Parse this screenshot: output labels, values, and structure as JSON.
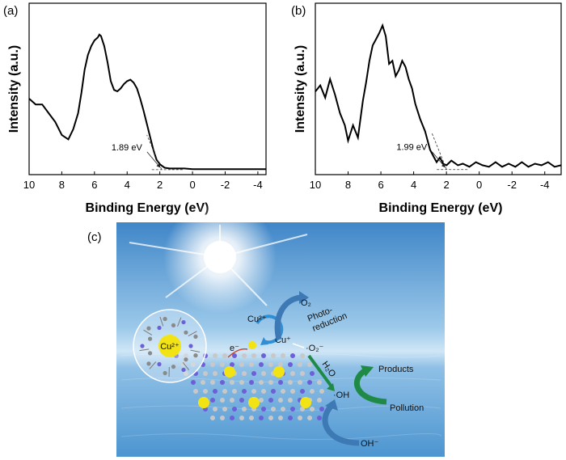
{
  "chart_data": [
    {
      "panel": "(a)",
      "type": "line",
      "xlabel": "Binding Energy (eV)",
      "ylabel": "Intensity (a.u.)",
      "xlim": [
        10,
        -4.5
      ],
      "x_reversed": true,
      "xticks": [
        10,
        8,
        6,
        4,
        2,
        0,
        -2,
        -4
      ],
      "xtick_labels": [
        "10",
        "8",
        "6",
        "4",
        "2",
        "0",
        "-2",
        "-4"
      ],
      "yticks": "none",
      "ylim": [
        0,
        1
      ],
      "annotation": "1.89 eV",
      "edge_value": 1.89,
      "series": [
        {
          "x": [
            10.0,
            9.6,
            9.2,
            8.8,
            8.4,
            8.0,
            7.6,
            7.3,
            7.0,
            6.8,
            6.6,
            6.4,
            6.2,
            6.0,
            5.8,
            5.7,
            5.6,
            5.4,
            5.2,
            5.0,
            4.8,
            4.6,
            4.4,
            4.2,
            4.0,
            3.8,
            3.6,
            3.4,
            3.2,
            3.0,
            2.8,
            2.6,
            2.4,
            2.2,
            2.0,
            1.89,
            1.7,
            1.4,
            1.0,
            0.5,
            0.0,
            -1.0,
            -2.0,
            -3.0,
            -4.0,
            -4.5
          ],
          "y": [
            0.5,
            0.46,
            0.46,
            0.4,
            0.34,
            0.25,
            0.22,
            0.29,
            0.4,
            0.54,
            0.7,
            0.8,
            0.86,
            0.9,
            0.92,
            0.94,
            0.93,
            0.86,
            0.75,
            0.62,
            0.56,
            0.55,
            0.57,
            0.6,
            0.62,
            0.63,
            0.61,
            0.57,
            0.5,
            0.42,
            0.33,
            0.24,
            0.15,
            0.08,
            0.05,
            0.04,
            0.025,
            0.02,
            0.02,
            0.02,
            0.015,
            0.015,
            0.015,
            0.015,
            0.015,
            0.015
          ]
        }
      ]
    },
    {
      "panel": "(b)",
      "type": "line",
      "xlabel": "Binding Energy (eV)",
      "ylabel": "Intensity (a.u.)",
      "xlim": [
        10,
        -5
      ],
      "x_reversed": true,
      "xticks": [
        10,
        8,
        6,
        4,
        2,
        0,
        -2,
        -4
      ],
      "xtick_labels": [
        "10",
        "8",
        "6",
        "4",
        "2",
        "0",
        "-2",
        "-4"
      ],
      "yticks": "none",
      "ylim": [
        0,
        1
      ],
      "annotation": "1.99 eV",
      "edge_value": 1.99,
      "series": [
        {
          "x": [
            10.0,
            9.7,
            9.4,
            9.1,
            8.8,
            8.5,
            8.2,
            8.0,
            7.7,
            7.4,
            7.1,
            6.9,
            6.7,
            6.5,
            6.3,
            6.1,
            5.9,
            5.7,
            5.5,
            5.3,
            5.1,
            4.9,
            4.7,
            4.5,
            4.3,
            4.1,
            3.9,
            3.6,
            3.3,
            3.0,
            2.8,
            2.6,
            2.4,
            2.2,
            1.99,
            1.7,
            1.3,
            1.0,
            0.6,
            0.2,
            -0.2,
            -0.6,
            -1.0,
            -1.4,
            -1.8,
            -2.2,
            -2.6,
            -3.0,
            -3.4,
            -3.8,
            -4.2,
            -4.6,
            -5.0
          ],
          "y": [
            0.52,
            0.56,
            0.48,
            0.6,
            0.5,
            0.38,
            0.3,
            0.2,
            0.3,
            0.22,
            0.46,
            0.58,
            0.72,
            0.82,
            0.86,
            0.9,
            0.95,
            0.88,
            0.7,
            0.72,
            0.62,
            0.66,
            0.72,
            0.68,
            0.6,
            0.54,
            0.44,
            0.34,
            0.26,
            0.14,
            0.1,
            0.06,
            0.09,
            0.05,
            0.04,
            0.07,
            0.04,
            0.05,
            0.03,
            0.06,
            0.04,
            0.03,
            0.06,
            0.03,
            0.05,
            0.03,
            0.06,
            0.03,
            0.05,
            0.04,
            0.06,
            0.03,
            0.04
          ]
        }
      ]
    }
  ],
  "panel_c": {
    "tag": "(c)",
    "labels": {
      "cu2_ring": "Cu²⁺",
      "cu2_cycle": "Cu²⁺",
      "cu_plus": "Cu⁺",
      "electron": "e⁻",
      "o2": "O₂",
      "photo_1": "Photo-",
      "photo_2": "reduction",
      "superoxide": "·O₂⁻",
      "h2o": "H₂O",
      "hydroxyl": "·OH",
      "products": "Products",
      "pollution": "Pollution",
      "hydroxide": "OH⁻"
    },
    "colors": {
      "sky_top": "#3f86c8",
      "sea": "#5fa6d8",
      "arrow_blue": "#3d79b4",
      "arrow_green": "#1f8a46",
      "copper": "#f2e414",
      "nitrogen": "#6d5fd6",
      "carbon": "#c8c8c8"
    }
  }
}
